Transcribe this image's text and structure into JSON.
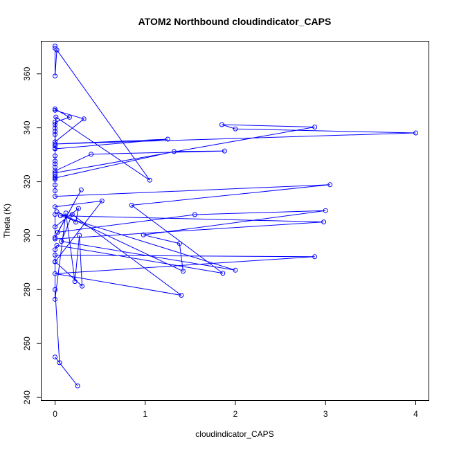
{
  "chart_data": {
    "type": "line",
    "title": "ATOM2 Northbound cloudindicator_CAPS",
    "xlabel": "cloudindicator_CAPS",
    "ylabel": "Theta (K)",
    "xlim": [
      -0.15,
      4.15
    ],
    "ylim": [
      239,
      372
    ],
    "xticks": [
      0,
      1,
      2,
      3,
      4
    ],
    "yticks": [
      240,
      260,
      280,
      300,
      320,
      340,
      360
    ],
    "grid": false,
    "series": [
      {
        "color": "#0000ff",
        "x": [
          0.0,
          0.0,
          0.0,
          0.02,
          1.05,
          0.01,
          0.0,
          0.32,
          0.0,
          0.0,
          0.16,
          0.0,
          0.0,
          0.0,
          0.0,
          0.0,
          0.0,
          0.0,
          0.0,
          0.0,
          0.0,
          0.0,
          0.0,
          0.4,
          1.88,
          1.32,
          0.0,
          0.0,
          1.25,
          0.0,
          4.0,
          2.0,
          1.85,
          2.88,
          0.0,
          0.0,
          0.0,
          0.0,
          0.0,
          0.0,
          0.0,
          3.05,
          0.85,
          1.86,
          0.02,
          0.0,
          0.0,
          0.52,
          0.0,
          0.0,
          0.0,
          0.29,
          0.03,
          1.55,
          3.0,
          0.98,
          1.38,
          1.42,
          0.02,
          0.23,
          0.26,
          0.0,
          0.0,
          2.98,
          0.06,
          2.0,
          0.07,
          0.19,
          1.4,
          0.0,
          2.88,
          0.0,
          0.0,
          0.12,
          0.22,
          0.27,
          0.3,
          0.0,
          0.0,
          0.05,
          0.0,
          0.25
        ],
        "y": [
          370.3,
          369.5,
          359.2,
          368.9,
          320.6,
          344.0,
          334.8,
          343.3,
          346.5,
          347.0,
          343.9,
          342.1,
          341.2,
          339.9,
          338.6,
          337.5,
          333.3,
          332.4,
          329.6,
          327.6,
          326.6,
          325.4,
          324.0,
          330.2,
          331.4,
          331.2,
          321.4,
          332.2,
          335.8,
          334.0,
          338.1,
          339.6,
          341.2,
          340.3,
          323.3,
          322.7,
          321.8,
          320.9,
          318.8,
          316.7,
          314.6,
          318.9,
          311.3,
          286.1,
          296.4,
          294.8,
          290.3,
          312.9,
          310.7,
          307.9,
          299.3,
          317.0,
          301.3,
          307.8,
          309.3,
          300.3,
          297.1,
          286.8,
          308.9,
          305.0,
          310.1,
          303.3,
          298.8,
          305.1,
          307.4,
          287.2,
          297.9,
          307.9,
          277.9,
          285.9,
          292.2,
          292.8,
          276.4,
          308.4,
          283.0,
          300.1,
          281.3,
          290.4,
          280.0,
          252.9,
          255.0,
          244.3
        ]
      }
    ]
  }
}
